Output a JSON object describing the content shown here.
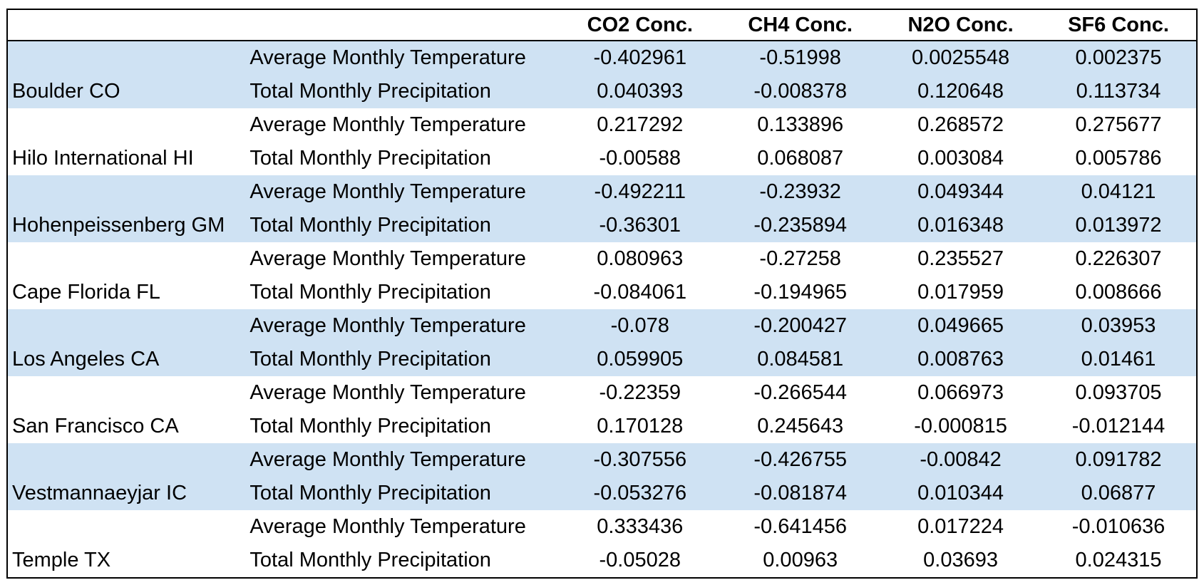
{
  "table": {
    "columns": [
      "",
      "",
      "CO2 Conc.",
      "CH4 Conc.",
      "N2O Conc.",
      "SF6 Conc."
    ],
    "groups": [
      {
        "station": "Boulder CO",
        "rows": [
          {
            "measure": "Average Monthly Temperature",
            "values": [
              "-0.402961",
              "-0.51998",
              "0.0025548",
              "0.002375"
            ]
          },
          {
            "measure": "Total Monthly Precipitation",
            "values": [
              "0.040393",
              "-0.008378",
              "0.120648",
              "0.113734"
            ]
          }
        ]
      },
      {
        "station": "Hilo International HI",
        "rows": [
          {
            "measure": "Average Monthly Temperature",
            "values": [
              "0.217292",
              "0.133896",
              "0.268572",
              "0.275677"
            ]
          },
          {
            "measure": "Total Monthly Precipitation",
            "values": [
              "-0.00588",
              "0.068087",
              "0.003084",
              "0.005786"
            ]
          }
        ]
      },
      {
        "station": "Hohenpeissenberg GM",
        "rows": [
          {
            "measure": "Average Monthly Temperature",
            "values": [
              "-0.492211",
              "-0.23932",
              "0.049344",
              "0.04121"
            ]
          },
          {
            "measure": "Total Monthly Precipitation",
            "values": [
              "-0.36301",
              "-0.235894",
              "0.016348",
              "0.013972"
            ]
          }
        ]
      },
      {
        "station": "Cape Florida FL",
        "rows": [
          {
            "measure": "Average Monthly Temperature",
            "values": [
              "0.080963",
              "-0.27258",
              "0.235527",
              "0.226307"
            ]
          },
          {
            "measure": "Total Monthly Precipitation",
            "values": [
              "-0.084061",
              "-0.194965",
              "0.017959",
              "0.008666"
            ]
          }
        ]
      },
      {
        "station": "Los Angeles CA",
        "rows": [
          {
            "measure": "Average Monthly Temperature",
            "values": [
              "-0.078",
              "-0.200427",
              "0.049665",
              "0.03953"
            ]
          },
          {
            "measure": "Total Monthly Precipitation",
            "values": [
              "0.059905",
              "0.084581",
              "0.008763",
              "0.01461"
            ]
          }
        ]
      },
      {
        "station": "San Francisco CA",
        "rows": [
          {
            "measure": "Average Monthly Temperature",
            "values": [
              "-0.22359",
              "-0.266544",
              "0.066973",
              "0.093705"
            ]
          },
          {
            "measure": "Total Monthly Precipitation",
            "values": [
              "0.170128",
              "0.245643",
              "-0.000815",
              "-0.012144"
            ]
          }
        ]
      },
      {
        "station": "Vestmannaeyjar IC",
        "rows": [
          {
            "measure": "Average Monthly Temperature",
            "values": [
              "-0.307556",
              "-0.426755",
              "-0.00842",
              "0.091782"
            ]
          },
          {
            "measure": "Total Monthly Precipitation",
            "values": [
              "-0.053276",
              "-0.081874",
              "0.010344",
              "0.06877"
            ]
          }
        ]
      },
      {
        "station": "Temple TX",
        "rows": [
          {
            "measure": "Average Monthly Temperature",
            "values": [
              "0.333436",
              "-0.641456",
              "0.017224",
              "-0.010636"
            ]
          },
          {
            "measure": "Total Monthly Precipitation",
            "values": [
              "-0.05028",
              "0.00963",
              "0.03693",
              "0.024315"
            ]
          }
        ]
      }
    ]
  },
  "colors": {
    "shade": "#cfe2f3",
    "border": "#000000"
  }
}
